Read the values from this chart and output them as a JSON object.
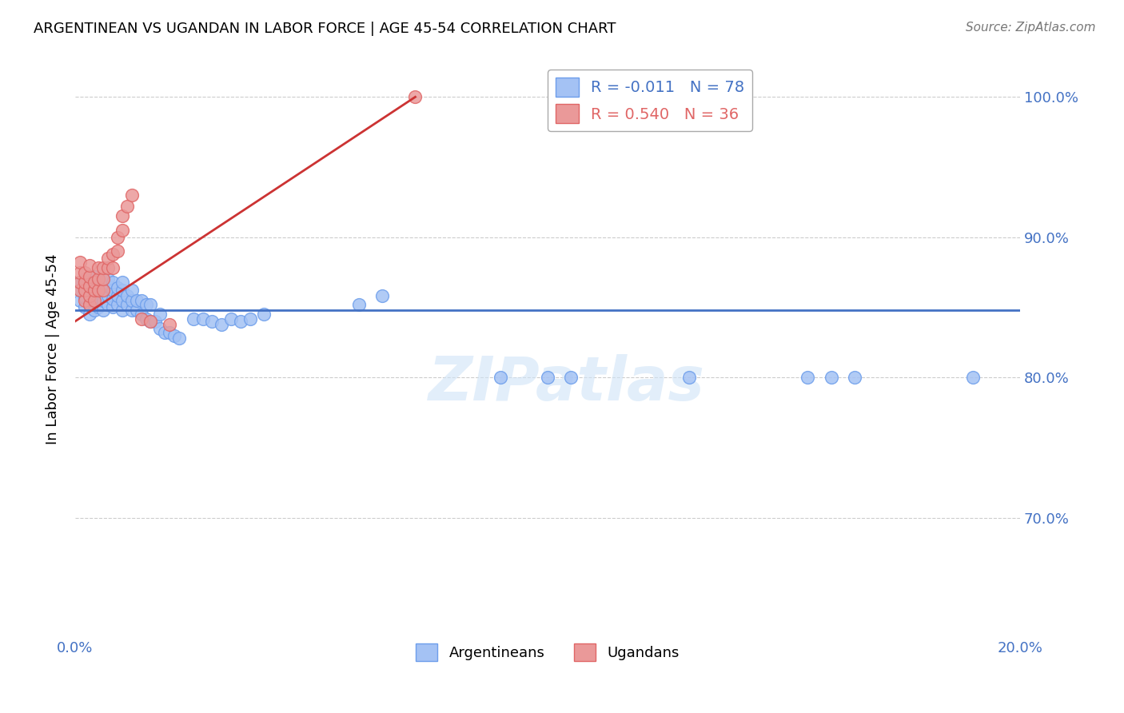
{
  "title": "ARGENTINEAN VS UGANDAN IN LABOR FORCE | AGE 45-54 CORRELATION CHART",
  "source": "Source: ZipAtlas.com",
  "ylabel_label": "In Labor Force | Age 45-54",
  "xlim": [
    0.0,
    0.2
  ],
  "ylim": [
    0.615,
    1.025
  ],
  "xticks": [
    0.0,
    0.04,
    0.08,
    0.12,
    0.16,
    0.2
  ],
  "xticklabels": [
    "0.0%",
    "",
    "",
    "",
    "",
    "20.0%"
  ],
  "yticks": [
    0.7,
    0.8,
    0.9,
    1.0
  ],
  "yticklabels": [
    "70.0%",
    "80.0%",
    "90.0%",
    "100.0%"
  ],
  "blue_R": "-0.011",
  "blue_N": "78",
  "pink_R": "0.540",
  "pink_N": "36",
  "blue_color": "#a4c2f4",
  "blue_edge_color": "#6d9eeb",
  "pink_color": "#ea9999",
  "pink_edge_color": "#e06666",
  "blue_line_color": "#4472c4",
  "pink_line_color": "#cc3333",
  "watermark_text": "ZIPatlas",
  "blue_points_x": [
    0.001,
    0.001,
    0.001,
    0.002,
    0.002,
    0.002,
    0.002,
    0.003,
    0.003,
    0.003,
    0.003,
    0.003,
    0.004,
    0.004,
    0.004,
    0.004,
    0.004,
    0.005,
    0.005,
    0.005,
    0.005,
    0.006,
    0.006,
    0.006,
    0.006,
    0.007,
    0.007,
    0.007,
    0.007,
    0.008,
    0.008,
    0.008,
    0.008,
    0.009,
    0.009,
    0.009,
    0.01,
    0.01,
    0.01,
    0.01,
    0.011,
    0.011,
    0.012,
    0.012,
    0.012,
    0.013,
    0.013,
    0.014,
    0.014,
    0.015,
    0.015,
    0.016,
    0.016,
    0.017,
    0.018,
    0.018,
    0.019,
    0.02,
    0.021,
    0.022,
    0.025,
    0.027,
    0.029,
    0.031,
    0.033,
    0.035,
    0.037,
    0.04,
    0.06,
    0.065,
    0.09,
    0.1,
    0.105,
    0.13,
    0.155,
    0.16,
    0.165,
    0.19
  ],
  "blue_points_y": [
    0.855,
    0.862,
    0.868,
    0.85,
    0.857,
    0.862,
    0.87,
    0.845,
    0.852,
    0.858,
    0.864,
    0.872,
    0.848,
    0.854,
    0.86,
    0.866,
    0.872,
    0.85,
    0.856,
    0.862,
    0.868,
    0.848,
    0.855,
    0.862,
    0.868,
    0.852,
    0.858,
    0.865,
    0.87,
    0.85,
    0.856,
    0.862,
    0.868,
    0.852,
    0.858,
    0.864,
    0.848,
    0.855,
    0.862,
    0.868,
    0.852,
    0.858,
    0.848,
    0.855,
    0.862,
    0.848,
    0.855,
    0.845,
    0.855,
    0.842,
    0.852,
    0.84,
    0.852,
    0.84,
    0.835,
    0.845,
    0.832,
    0.832,
    0.83,
    0.828,
    0.842,
    0.842,
    0.84,
    0.838,
    0.842,
    0.84,
    0.842,
    0.845,
    0.852,
    0.858,
    0.8,
    0.8,
    0.8,
    0.8,
    0.8,
    0.8,
    0.8,
    0.8
  ],
  "pink_points_x": [
    0.001,
    0.001,
    0.001,
    0.001,
    0.002,
    0.002,
    0.002,
    0.002,
    0.003,
    0.003,
    0.003,
    0.003,
    0.003,
    0.004,
    0.004,
    0.004,
    0.005,
    0.005,
    0.005,
    0.006,
    0.006,
    0.006,
    0.007,
    0.007,
    0.008,
    0.008,
    0.009,
    0.009,
    0.01,
    0.01,
    0.011,
    0.012,
    0.014,
    0.016,
    0.02,
    0.072
  ],
  "pink_points_y": [
    0.862,
    0.868,
    0.875,
    0.882,
    0.855,
    0.862,
    0.868,
    0.875,
    0.852,
    0.858,
    0.865,
    0.872,
    0.88,
    0.855,
    0.862,
    0.868,
    0.862,
    0.87,
    0.878,
    0.862,
    0.87,
    0.878,
    0.878,
    0.885,
    0.878,
    0.888,
    0.89,
    0.9,
    0.905,
    0.915,
    0.922,
    0.93,
    0.842,
    0.84,
    0.838,
    1.0
  ],
  "blue_line_fixed": [
    0.0,
    0.2,
    0.848,
    0.848
  ],
  "pink_line_fixed": [
    0.0,
    0.072,
    0.84,
    1.0
  ]
}
